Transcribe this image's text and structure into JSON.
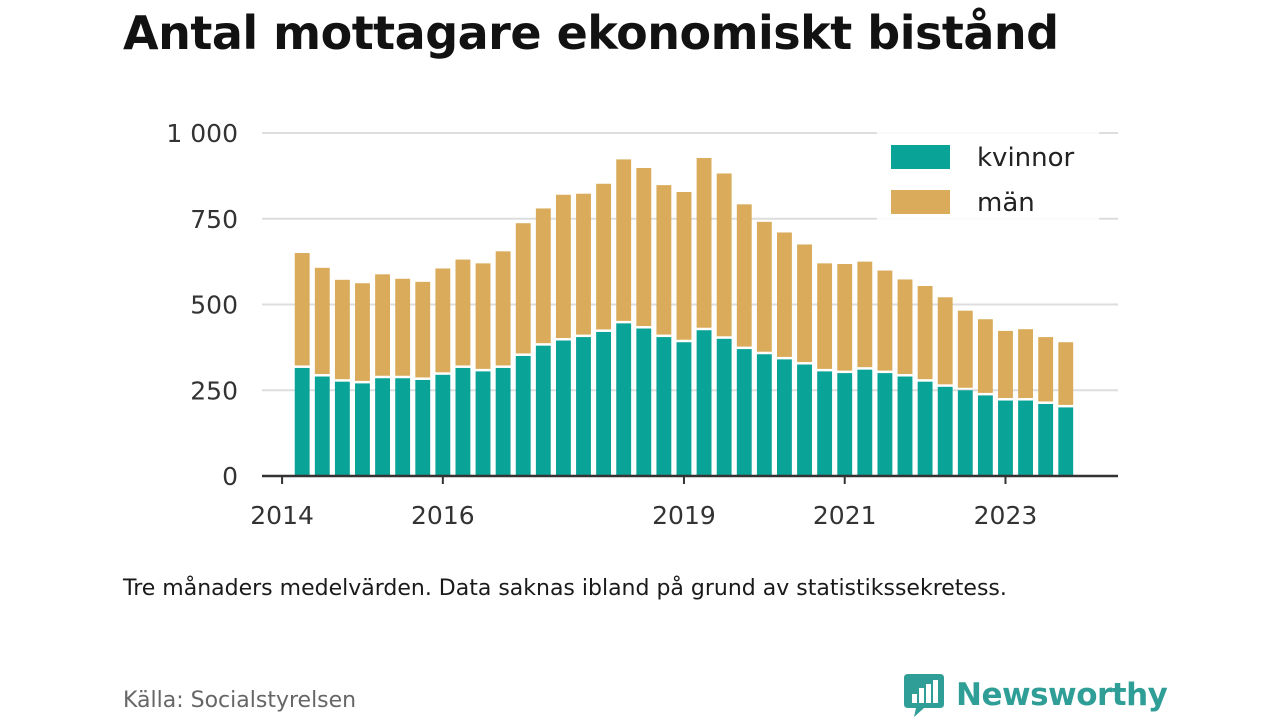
{
  "title": "Antal mottagare ekonomiskt bistånd",
  "note": "Tre månaders medelvärden. Data saknas ibland på grund av statistikssekretess.",
  "source": "Källa: Socialstyrelsen",
  "brand": "Newsworthy",
  "colors": {
    "women": "#0aa398",
    "men": "#d9ab5a",
    "brand": "#2f9e96"
  },
  "chart_data": {
    "type": "bar",
    "stacked": true,
    "x_start": 2014.25,
    "x_step": 0.25,
    "xlim": [
      2013.75,
      2024.4
    ],
    "ylim": [
      0,
      1000
    ],
    "yticks": [
      0,
      250,
      500,
      750,
      1000
    ],
    "ytick_labels": [
      "0",
      "250",
      "500",
      "750",
      "1 000"
    ],
    "xticks": [
      2014,
      2016,
      2019,
      2021,
      2023
    ],
    "xtick_labels": [
      "2014",
      "2016",
      "2019",
      "2021",
      "2023"
    ],
    "legend_position": "top-right",
    "grid": true,
    "series": [
      {
        "name": "kvinnor",
        "values": [
          315,
          290,
          275,
          270,
          285,
          285,
          280,
          295,
          315,
          305,
          315,
          350,
          380,
          395,
          405,
          420,
          445,
          430,
          405,
          390,
          425,
          400,
          370,
          355,
          340,
          325,
          305,
          300,
          310,
          300,
          290,
          275,
          260,
          250,
          235,
          220,
          220,
          210,
          200
        ]
      },
      {
        "name": "män",
        "values": [
          335,
          317,
          297,
          292,
          303,
          290,
          286,
          310,
          316,
          315,
          340,
          387,
          400,
          425,
          418,
          432,
          478,
          468,
          443,
          438,
          502,
          482,
          422,
          386,
          370,
          350,
          315,
          318,
          315,
          299,
          283,
          279,
          261,
          232,
          222,
          203,
          208,
          195,
          190
        ]
      }
    ]
  }
}
